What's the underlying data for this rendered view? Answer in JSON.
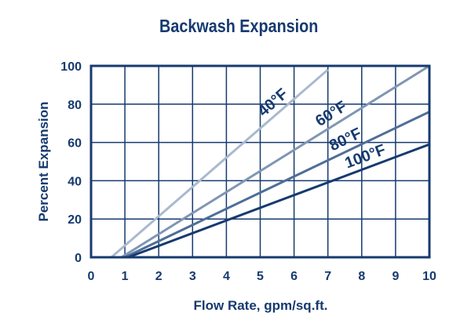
{
  "chart_data": {
    "type": "line",
    "title": "Backwash Expansion",
    "xlabel": "Flow Rate, gpm/sq.ft.",
    "ylabel": "Percent Expansion",
    "xlim": [
      0,
      10
    ],
    "ylim": [
      0,
      100
    ],
    "x_ticks": [
      "0",
      "1",
      "2",
      "3",
      "4",
      "5",
      "6",
      "7",
      "8",
      "9",
      "10"
    ],
    "y_ticks": [
      "0",
      "20",
      "40",
      "60",
      "80",
      "100"
    ],
    "grid": true,
    "series": [
      {
        "name": "40°F",
        "x": [
          0.6,
          7.0
        ],
        "y": [
          0,
          98
        ],
        "color": "#a9b9cf"
      },
      {
        "name": "60°F",
        "x": [
          0.9,
          10.0
        ],
        "y": [
          0,
          100
        ],
        "color": "#7f96b4"
      },
      {
        "name": "80°F",
        "x": [
          1.0,
          10.0
        ],
        "y": [
          0,
          76
        ],
        "color": "#4e6e98"
      },
      {
        "name": "100°F",
        "x": [
          1.1,
          10.0
        ],
        "y": [
          0,
          59
        ],
        "color": "#163a6f"
      }
    ],
    "annotations": [
      {
        "text": "40°F",
        "series": 0
      },
      {
        "text": "60°F",
        "series": 1
      },
      {
        "text": "80°F",
        "series": 2
      },
      {
        "text": "100°F",
        "series": 3
      }
    ]
  }
}
